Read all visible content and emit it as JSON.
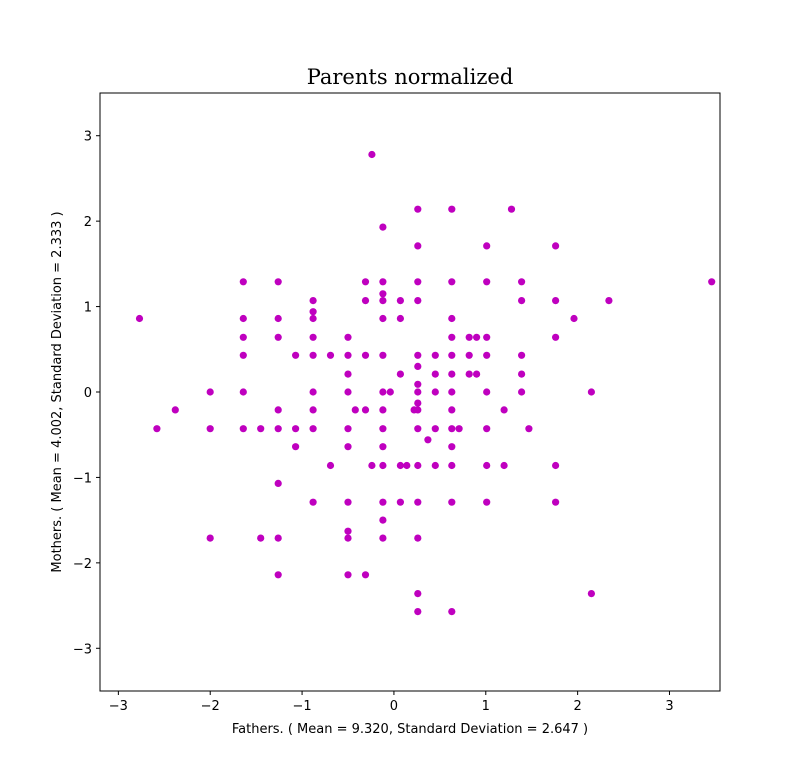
{
  "chart_data": {
    "type": "scatter",
    "title": "Parents normalized",
    "xlabel": "Fathers.  ( Mean = 9.320, Standard Deviation = 2.647 )",
    "ylabel": "Mothers.  ( Mean = 4.002, Standard Deviation = 2.333 )",
    "xlim": [
      -3.2,
      3.55
    ],
    "ylim": [
      -3.5,
      3.5
    ],
    "xticks": [
      -3,
      -2,
      -1,
      0,
      1,
      2,
      3
    ],
    "yticks": [
      -3,
      -2,
      -1,
      0,
      1,
      2,
      3
    ],
    "grid": false,
    "marker_color": "#bf00bf",
    "series": [
      {
        "points": [
          [
            -2.77,
            0.86
          ],
          [
            -2.58,
            -0.43
          ],
          [
            -2.38,
            -0.21
          ],
          [
            -2.0,
            0.0
          ],
          [
            -2.0,
            -0.43
          ],
          [
            -2.0,
            -1.71
          ],
          [
            -1.64,
            1.29
          ],
          [
            -1.64,
            0.86
          ],
          [
            -1.64,
            0.64
          ],
          [
            -1.64,
            0.43
          ],
          [
            -1.64,
            0.0
          ],
          [
            -1.64,
            -0.43
          ],
          [
            -1.45,
            -0.43
          ],
          [
            -1.45,
            -1.71
          ],
          [
            -1.26,
            1.29
          ],
          [
            -1.26,
            0.86
          ],
          [
            -1.26,
            0.64
          ],
          [
            -1.26,
            -0.21
          ],
          [
            -1.26,
            -0.43
          ],
          [
            -1.26,
            -1.07
          ],
          [
            -1.26,
            -1.71
          ],
          [
            -1.26,
            -2.14
          ],
          [
            -1.07,
            0.43
          ],
          [
            -1.07,
            -0.43
          ],
          [
            -1.07,
            -0.64
          ],
          [
            -0.88,
            1.07
          ],
          [
            -0.88,
            0.94
          ],
          [
            -0.88,
            0.86
          ],
          [
            -0.88,
            0.64
          ],
          [
            -0.88,
            0.43
          ],
          [
            -0.88,
            0.0
          ],
          [
            -0.88,
            -0.21
          ],
          [
            -0.88,
            -0.43
          ],
          [
            -0.88,
            -1.29
          ],
          [
            -0.69,
            0.43
          ],
          [
            -0.69,
            -0.86
          ],
          [
            -0.5,
            0.64
          ],
          [
            -0.5,
            0.43
          ],
          [
            -0.5,
            0.21
          ],
          [
            -0.5,
            0.0
          ],
          [
            -0.5,
            -0.43
          ],
          [
            -0.5,
            -0.64
          ],
          [
            -0.5,
            -1.29
          ],
          [
            -0.5,
            -1.63
          ],
          [
            -0.5,
            -1.71
          ],
          [
            -0.5,
            -2.14
          ],
          [
            -0.42,
            -0.21
          ],
          [
            -0.31,
            1.29
          ],
          [
            -0.31,
            1.07
          ],
          [
            -0.31,
            0.43
          ],
          [
            -0.31,
            -0.21
          ],
          [
            -0.31,
            -2.14
          ],
          [
            -0.24,
            2.78
          ],
          [
            -0.24,
            -0.86
          ],
          [
            -0.12,
            1.93
          ],
          [
            -0.12,
            1.29
          ],
          [
            -0.12,
            1.15
          ],
          [
            -0.12,
            1.07
          ],
          [
            -0.12,
            0.86
          ],
          [
            -0.12,
            0.43
          ],
          [
            -0.12,
            0.0
          ],
          [
            -0.12,
            -0.21
          ],
          [
            -0.12,
            -0.43
          ],
          [
            -0.12,
            -0.64
          ],
          [
            -0.12,
            -0.86
          ],
          [
            -0.12,
            -1.29
          ],
          [
            -0.12,
            -1.5
          ],
          [
            -0.12,
            -1.71
          ],
          [
            -0.04,
            0.0
          ],
          [
            0.07,
            1.07
          ],
          [
            0.07,
            0.86
          ],
          [
            0.07,
            0.21
          ],
          [
            0.07,
            -0.86
          ],
          [
            0.07,
            -1.29
          ],
          [
            0.14,
            -0.86
          ],
          [
            0.22,
            -0.21
          ],
          [
            0.26,
            2.14
          ],
          [
            0.26,
            1.71
          ],
          [
            0.26,
            1.29
          ],
          [
            0.26,
            1.07
          ],
          [
            0.26,
            0.43
          ],
          [
            0.26,
            0.3
          ],
          [
            0.26,
            0.09
          ],
          [
            0.26,
            0.0
          ],
          [
            0.26,
            -0.13
          ],
          [
            0.26,
            -0.21
          ],
          [
            0.26,
            -0.43
          ],
          [
            0.26,
            -0.86
          ],
          [
            0.26,
            -1.29
          ],
          [
            0.26,
            -1.71
          ],
          [
            0.26,
            -2.36
          ],
          [
            0.26,
            -2.57
          ],
          [
            0.37,
            -0.56
          ],
          [
            0.45,
            0.43
          ],
          [
            0.45,
            0.21
          ],
          [
            0.45,
            0.0
          ],
          [
            0.45,
            -0.43
          ],
          [
            0.45,
            -0.86
          ],
          [
            0.63,
            2.14
          ],
          [
            0.63,
            1.29
          ],
          [
            0.63,
            0.86
          ],
          [
            0.63,
            0.64
          ],
          [
            0.63,
            0.43
          ],
          [
            0.63,
            0.21
          ],
          [
            0.63,
            0.0
          ],
          [
            0.63,
            -0.21
          ],
          [
            0.63,
            -0.43
          ],
          [
            0.63,
            -0.64
          ],
          [
            0.63,
            -0.86
          ],
          [
            0.63,
            -1.29
          ],
          [
            0.63,
            -2.57
          ],
          [
            0.71,
            -0.43
          ],
          [
            0.82,
            0.64
          ],
          [
            0.82,
            0.43
          ],
          [
            0.82,
            0.21
          ],
          [
            0.9,
            0.64
          ],
          [
            0.9,
            0.21
          ],
          [
            1.01,
            1.71
          ],
          [
            1.01,
            1.29
          ],
          [
            1.01,
            0.64
          ],
          [
            1.01,
            0.43
          ],
          [
            1.01,
            0.0
          ],
          [
            1.01,
            -0.43
          ],
          [
            1.01,
            -0.86
          ],
          [
            1.01,
            -1.29
          ],
          [
            1.2,
            -0.21
          ],
          [
            1.2,
            -0.86
          ],
          [
            1.28,
            2.14
          ],
          [
            1.39,
            1.29
          ],
          [
            1.39,
            1.07
          ],
          [
            1.39,
            0.43
          ],
          [
            1.39,
            0.21
          ],
          [
            1.39,
            0.0
          ],
          [
            1.47,
            -0.43
          ],
          [
            1.76,
            1.71
          ],
          [
            1.76,
            1.07
          ],
          [
            1.76,
            0.64
          ],
          [
            1.76,
            -0.86
          ],
          [
            1.76,
            -1.29
          ],
          [
            1.96,
            0.86
          ],
          [
            2.15,
            0.0
          ],
          [
            2.15,
            -2.36
          ],
          [
            2.34,
            1.07
          ],
          [
            3.46,
            1.29
          ]
        ]
      }
    ]
  }
}
